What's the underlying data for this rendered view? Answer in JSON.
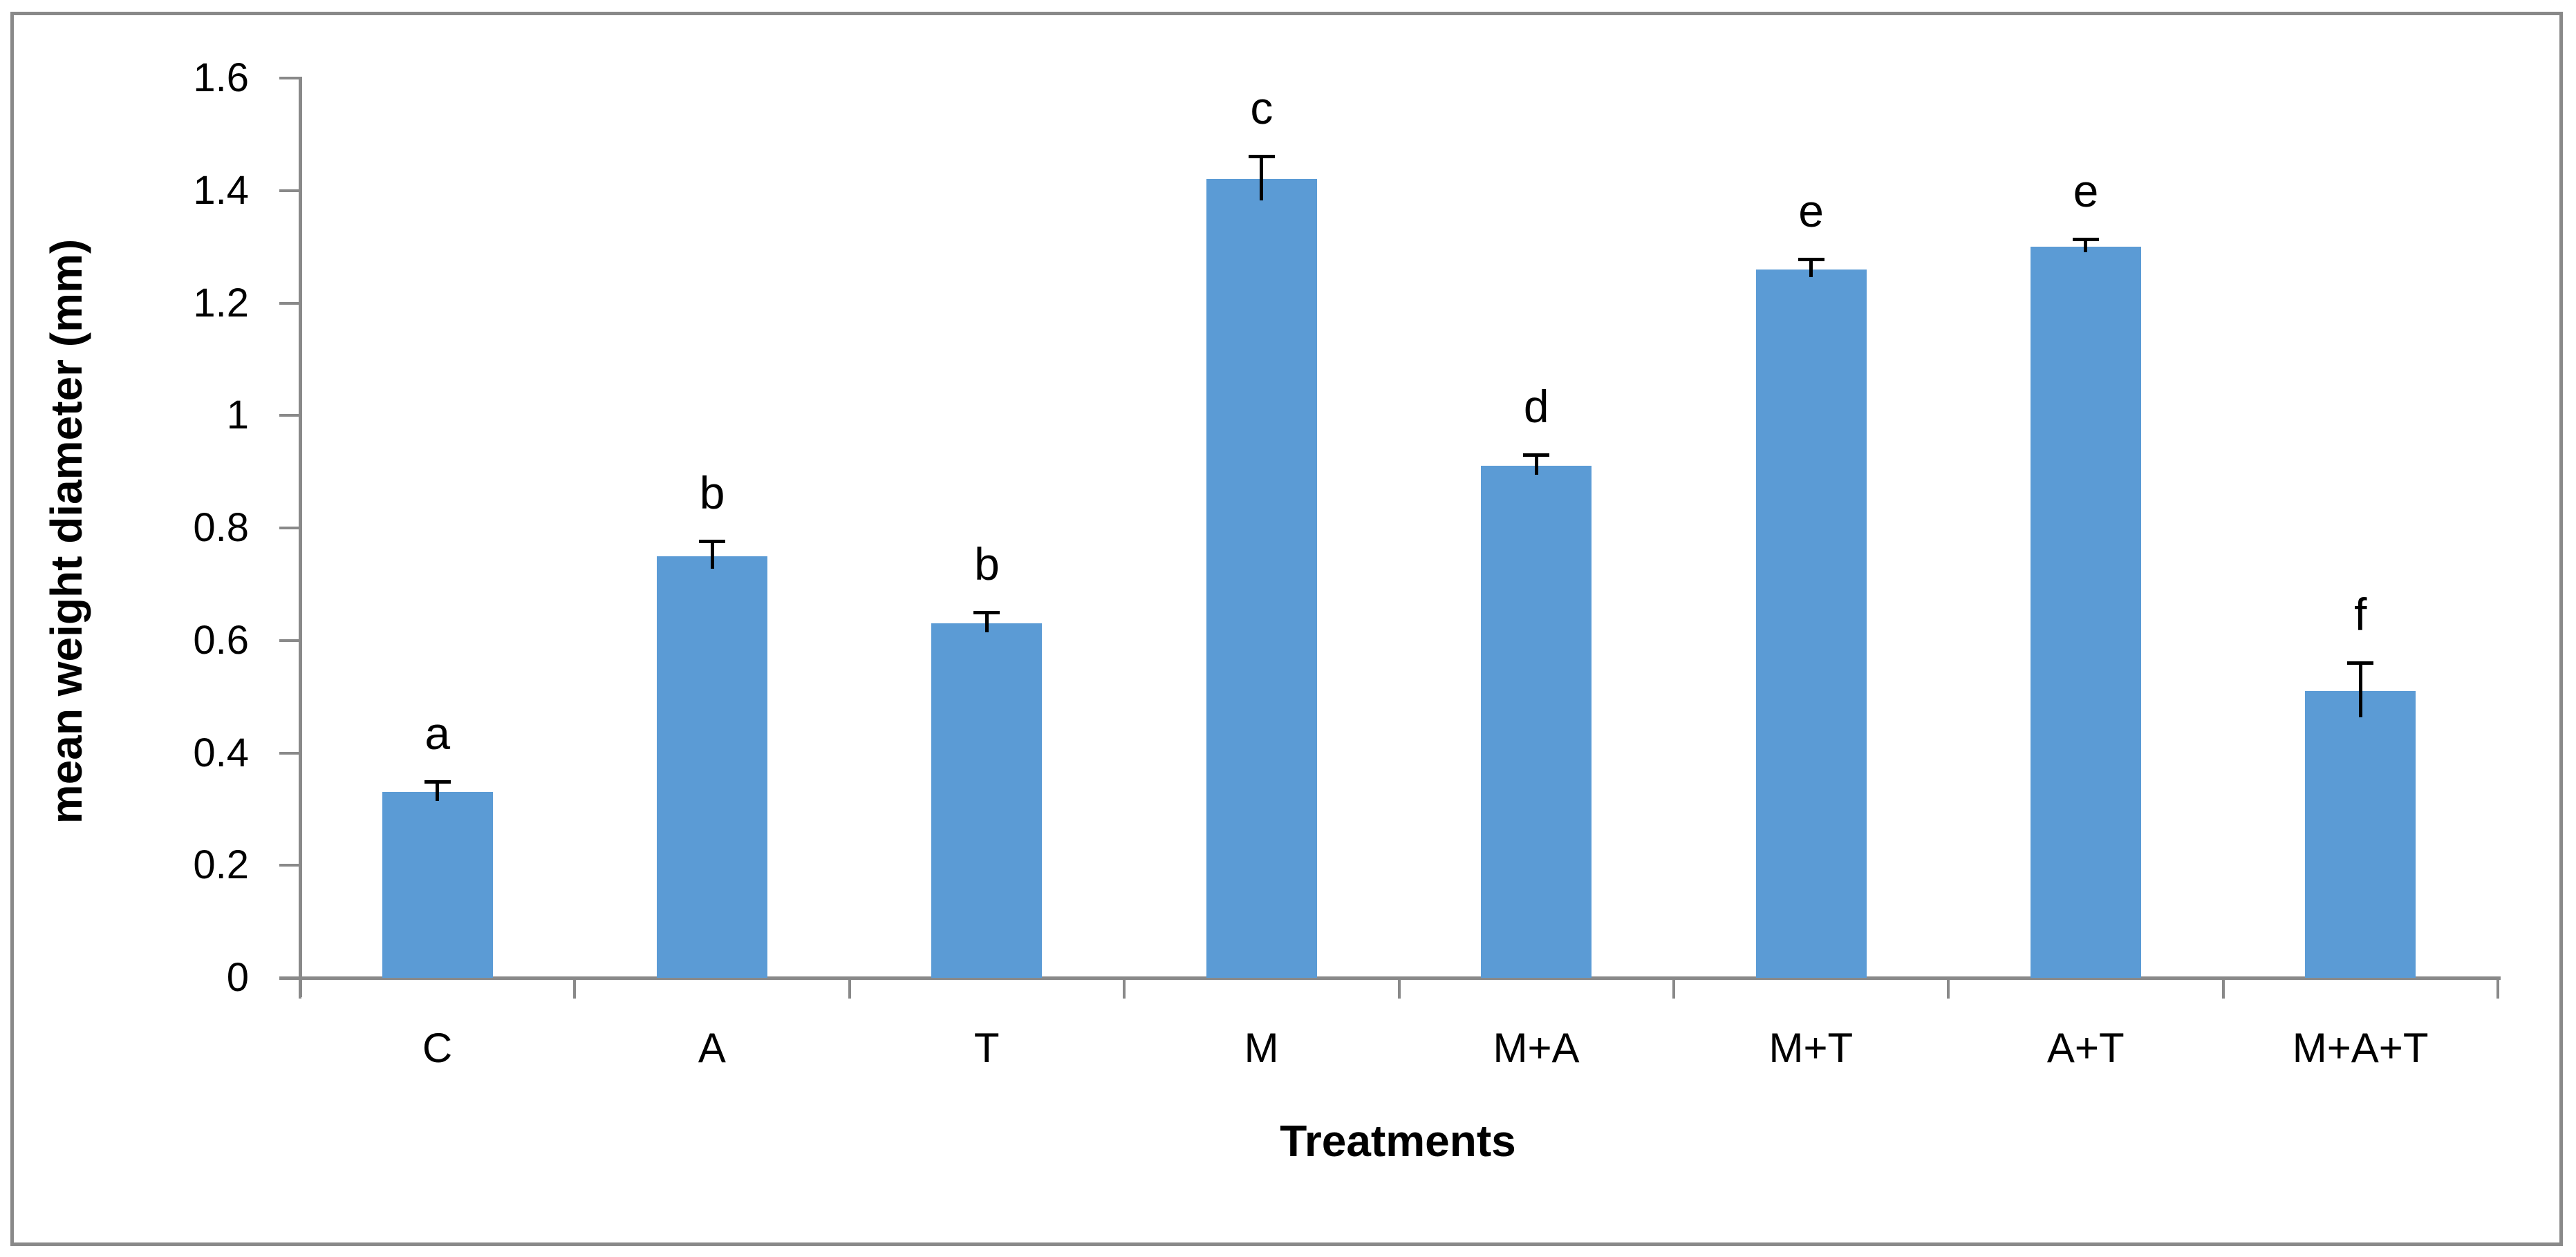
{
  "chart_data": {
    "type": "bar",
    "title": "",
    "xlabel": "Treatments",
    "ylabel": "mean weight diameter (mm)",
    "categories": [
      "C",
      "A",
      "T",
      "M",
      "M+A",
      "M+T",
      "A+T",
      "M+A+T"
    ],
    "values": [
      0.33,
      0.75,
      0.63,
      1.42,
      0.91,
      1.26,
      1.3,
      0.51
    ],
    "errors": [
      0.015,
      0.023,
      0.016,
      0.038,
      0.016,
      0.014,
      0.01,
      0.047
    ],
    "sig_letters": [
      "a",
      "b",
      "b",
      "c",
      "d",
      "e",
      "e",
      "f"
    ],
    "ylim": [
      0,
      1.6
    ],
    "ytick_step": 0.2,
    "ytick_labels": [
      "0",
      "0.2",
      "0.4",
      "0.6",
      "0.8",
      "1",
      "1.2",
      "1.4",
      "1.6"
    ],
    "grid": false,
    "legend": "none",
    "bar_color": "#5B9BD5",
    "axis_color": "#898989",
    "error_bar_color": "#000000",
    "text_color": "#000000",
    "border_color": "#898989"
  }
}
